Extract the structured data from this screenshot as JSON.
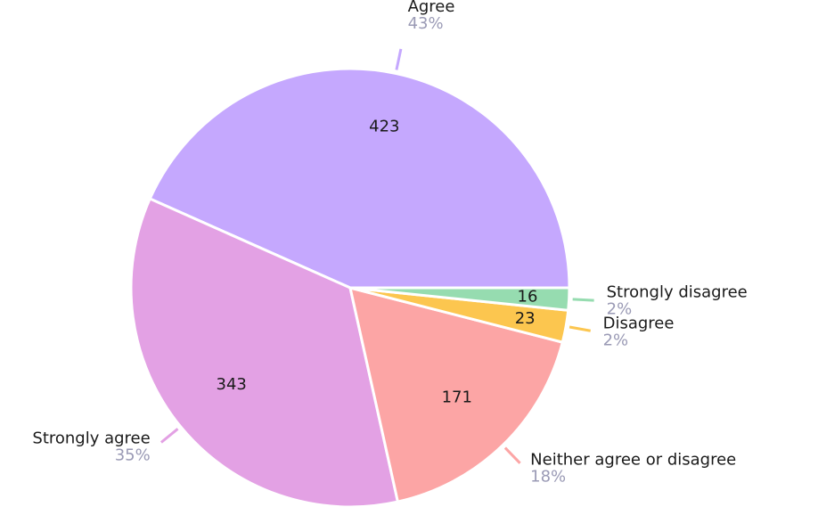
{
  "chart_data": {
    "type": "pie",
    "categories": [
      "Agree",
      "Strongly agree",
      "Neither agree or disagree",
      "Disagree",
      "Strongly disagree"
    ],
    "values": [
      423,
      343,
      171,
      23,
      16
    ],
    "percent_labels": [
      "43%",
      "35%",
      "18%",
      "2%",
      "2%"
    ],
    "colors": [
      "#c5a8fe",
      "#e3a1e4",
      "#fca5a5",
      "#fcc64f",
      "#96dcb0"
    ],
    "start": "right",
    "direction": "counterclockwise"
  }
}
